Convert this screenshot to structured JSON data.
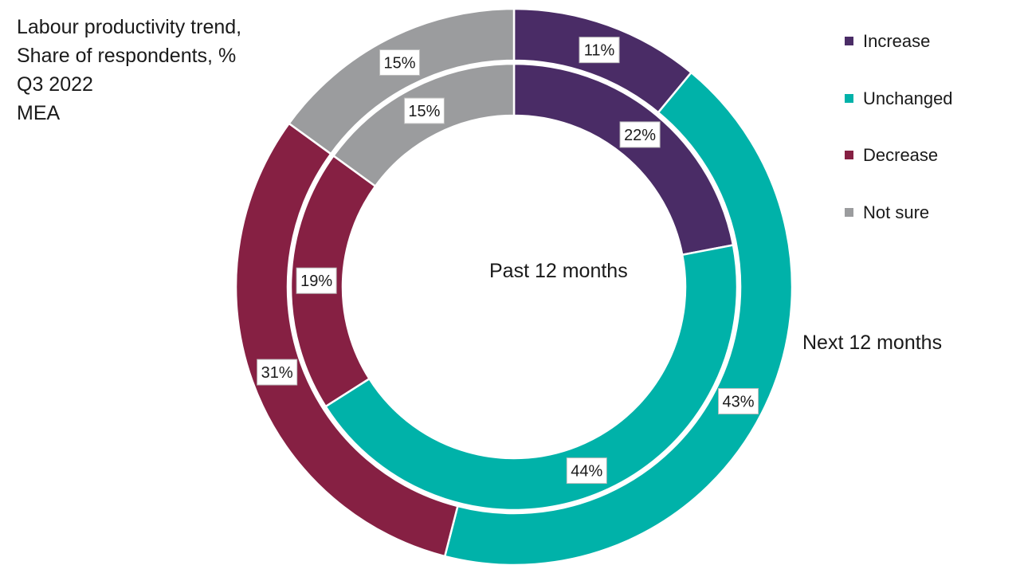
{
  "title_lines": [
    "Labour productivity trend,",
    "Share of respondents, %",
    "Q3 2022",
    "MEA"
  ],
  "chart_data": {
    "type": "pie",
    "subtype": "nested donut",
    "categories": [
      "Increase",
      "Unchanged",
      "Decrease",
      "Not sure"
    ],
    "colors": [
      "#4a2c66",
      "#00b2a9",
      "#862043",
      "#9b9c9e"
    ],
    "series": [
      {
        "name": "Next 12 months",
        "ring": "outer",
        "values": [
          11,
          43,
          31,
          15
        ]
      },
      {
        "name": "Past 12 months",
        "ring": "inner",
        "values": [
          22,
          44,
          19,
          15
        ]
      }
    ],
    "value_suffix": "%",
    "legend_position": "right"
  },
  "legend": [
    {
      "label": "Increase",
      "color": "#4a2c66"
    },
    {
      "label": "Unchanged",
      "color": "#00b2a9"
    },
    {
      "label": "Decrease",
      "color": "#862043"
    },
    {
      "label": "Not sure",
      "color": "#9b9c9e"
    }
  ]
}
